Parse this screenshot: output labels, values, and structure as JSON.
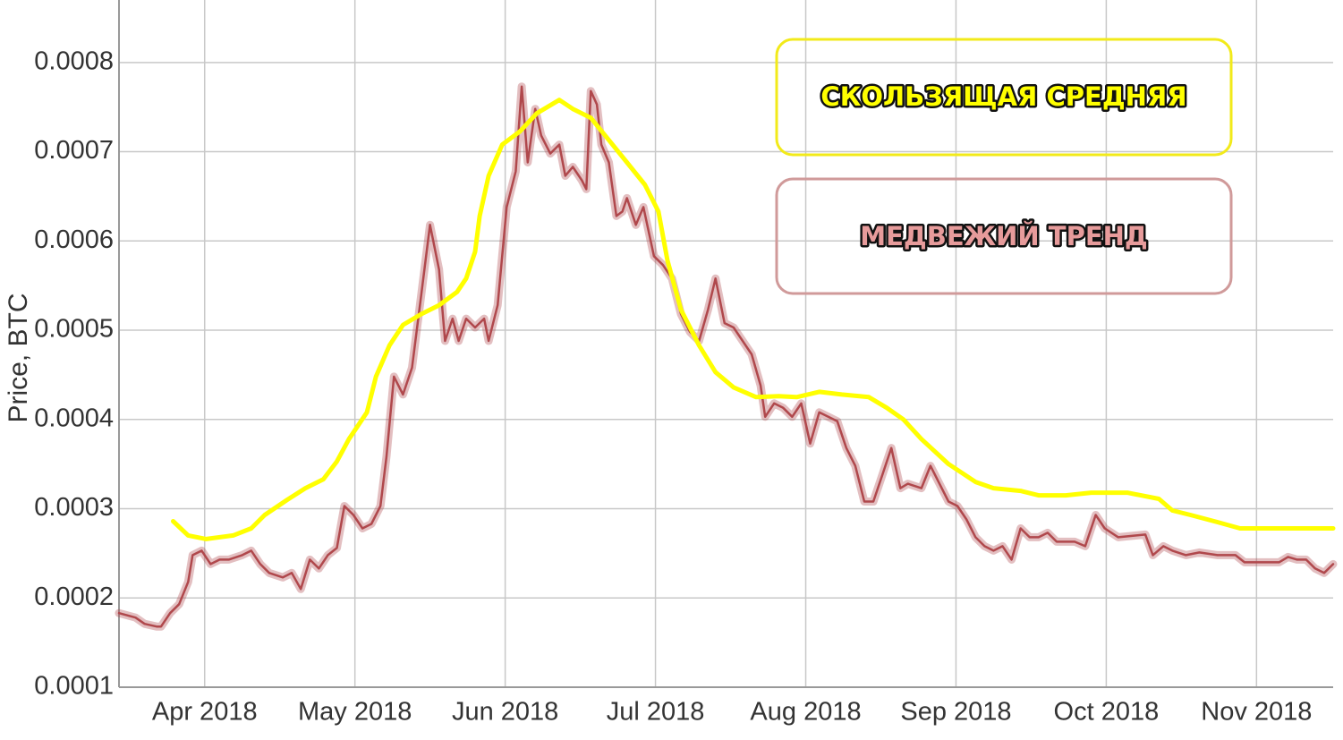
{
  "chart_data": {
    "type": "line",
    "y_label": "Price, BTC",
    "annotations": [
      "СКОЛЬЗЯЩАЯ СРЕДНЯЯ",
      "МЕДВЕЖИЙ ТРЕНД"
    ],
    "xlim": [
      -0.57,
      7.51
    ],
    "xticks": [
      {
        "value": 0,
        "label": "Apr 2018"
      },
      {
        "value": 1,
        "label": "May 2018"
      },
      {
        "value": 2,
        "label": "Jun 2018"
      },
      {
        "value": 3,
        "label": "Jul 2018"
      },
      {
        "value": 4,
        "label": "Aug 2018"
      },
      {
        "value": 5,
        "label": "Sep 2018"
      },
      {
        "value": 6,
        "label": "Oct 2018"
      },
      {
        "value": 7,
        "label": "Nov 2018"
      }
    ],
    "ylim": [
      0.0001,
      0.00087
    ],
    "yticks": [
      0.0001,
      0.0002,
      0.0003,
      0.0004,
      0.0005,
      0.0006,
      0.0007,
      0.0008
    ],
    "grid": true,
    "series": [
      {
        "color": "#b0484c",
        "x": [
          -0.57,
          -0.46,
          -0.4,
          -0.32,
          -0.29,
          -0.23,
          -0.17,
          -0.11,
          -0.08,
          -0.02,
          0.04,
          0.1,
          0.16,
          0.25,
          0.31,
          0.37,
          0.43,
          0.52,
          0.58,
          0.64,
          0.7,
          0.76,
          0.82,
          0.88,
          0.93,
          0.99,
          1.05,
          1.11,
          1.17,
          1.21,
          1.26,
          1.32,
          1.38,
          1.44,
          1.5,
          1.56,
          1.6,
          1.65,
          1.69,
          1.74,
          1.8,
          1.86,
          1.89,
          1.95,
          2.01,
          2.07,
          2.11,
          2.15,
          2.2,
          2.24,
          2.3,
          2.36,
          2.4,
          2.45,
          2.51,
          2.54,
          2.57,
          2.61,
          2.64,
          2.69,
          2.74,
          2.78,
          2.81,
          2.87,
          2.92,
          2.99,
          3.05,
          3.11,
          3.17,
          3.23,
          3.29,
          3.35,
          3.4,
          3.46,
          3.52,
          3.58,
          3.64,
          3.7,
          3.73,
          3.79,
          3.85,
          3.91,
          3.97,
          4.03,
          4.09,
          4.15,
          4.21,
          4.27,
          4.33,
          4.39,
          4.45,
          4.51,
          4.57,
          4.63,
          4.68,
          4.77,
          4.83,
          4.89,
          4.95,
          5.01,
          5.07,
          5.13,
          5.19,
          5.25,
          5.31,
          5.37,
          5.43,
          5.49,
          5.55,
          5.61,
          5.67,
          5.79,
          5.86,
          5.93,
          5.99,
          6.08,
          6.2,
          6.26,
          6.31,
          6.38,
          6.44,
          6.53,
          6.62,
          6.74,
          6.86,
          6.92,
          7.04,
          7.15,
          7.21,
          7.27,
          7.33,
          7.39,
          7.45,
          7.51
        ],
        "values": [
          0.000183,
          0.000178,
          0.000171,
          0.000168,
          0.000168,
          0.000183,
          0.000193,
          0.000218,
          0.000248,
          0.000253,
          0.000238,
          0.000243,
          0.000243,
          0.000248,
          0.000253,
          0.000238,
          0.000228,
          0.000223,
          0.000228,
          0.00021,
          0.000243,
          0.000233,
          0.000248,
          0.000256,
          0.000303,
          0.000293,
          0.000278,
          0.000283,
          0.000303,
          0.000358,
          0.000448,
          0.000428,
          0.000458,
          0.000538,
          0.000618,
          0.000568,
          0.000488,
          0.000513,
          0.000488,
          0.000513,
          0.000503,
          0.000513,
          0.000488,
          0.000528,
          0.000638,
          0.000678,
          0.000773,
          0.000688,
          0.000748,
          0.000718,
          0.000698,
          0.000708,
          0.000673,
          0.000683,
          0.000668,
          0.000658,
          0.000768,
          0.000753,
          0.000708,
          0.000688,
          0.000628,
          0.000633,
          0.000648,
          0.000618,
          0.000638,
          0.000583,
          0.000573,
          0.000558,
          0.000518,
          0.000498,
          0.000488,
          0.000523,
          0.000558,
          0.000508,
          0.000503,
          0.000488,
          0.000473,
          0.000438,
          0.000403,
          0.000418,
          0.000413,
          0.000403,
          0.000418,
          0.000373,
          0.000408,
          0.000403,
          0.000398,
          0.000368,
          0.000348,
          0.000308,
          0.000308,
          0.000338,
          0.000368,
          0.000323,
          0.000328,
          0.000323,
          0.000348,
          0.000328,
          0.000308,
          0.000303,
          0.000288,
          0.000268,
          0.000258,
          0.000253,
          0.000258,
          0.000243,
          0.000278,
          0.000268,
          0.000268,
          0.000273,
          0.000263,
          0.000263,
          0.000258,
          0.000293,
          0.000278,
          0.000268,
          0.00027,
          0.000271,
          0.000248,
          0.000258,
          0.000253,
          0.000248,
          0.000251,
          0.000248,
          0.000248,
          0.00024,
          0.00024,
          0.00024,
          0.000246,
          0.000243,
          0.000243,
          0.000233,
          0.000228,
          0.000238
        ]
      },
      {
        "color": "#ffff00",
        "x": [
          -0.21,
          -0.11,
          0.01,
          0.19,
          0.31,
          0.4,
          0.55,
          0.67,
          0.79,
          0.88,
          0.96,
          1.08,
          1.14,
          1.23,
          1.32,
          1.44,
          1.56,
          1.68,
          1.74,
          1.8,
          1.83,
          1.89,
          1.98,
          2.1,
          2.21,
          2.36,
          2.45,
          2.57,
          2.69,
          2.81,
          2.93,
          3.02,
          3.08,
          3.17,
          3.29,
          3.4,
          3.52,
          3.67,
          3.82,
          3.94,
          4.09,
          4.24,
          4.42,
          4.54,
          4.65,
          4.77,
          4.95,
          5.13,
          5.25,
          5.43,
          5.55,
          5.73,
          5.9,
          6.14,
          6.35,
          6.44,
          6.56,
          6.74,
          6.89,
          7.1,
          7.51
        ],
        "values": [
          0.000286,
          0.00027,
          0.000266,
          0.00027,
          0.000278,
          0.000293,
          0.00031,
          0.000323,
          0.000333,
          0.000353,
          0.000378,
          0.000408,
          0.000448,
          0.000483,
          0.000506,
          0.000518,
          0.000528,
          0.000543,
          0.000558,
          0.000588,
          0.000628,
          0.000673,
          0.000708,
          0.000723,
          0.000743,
          0.000758,
          0.000748,
          0.000738,
          0.000713,
          0.000688,
          0.000663,
          0.000633,
          0.000578,
          0.000523,
          0.000483,
          0.000453,
          0.000436,
          0.000425,
          0.000426,
          0.000425,
          0.000431,
          0.000428,
          0.000425,
          0.000413,
          0.0004,
          0.000378,
          0.00035,
          0.00033,
          0.000323,
          0.00032,
          0.000315,
          0.000315,
          0.000318,
          0.000318,
          0.000311,
          0.000298,
          0.000293,
          0.000285,
          0.000278,
          0.000278,
          0.000278
        ]
      }
    ]
  }
}
